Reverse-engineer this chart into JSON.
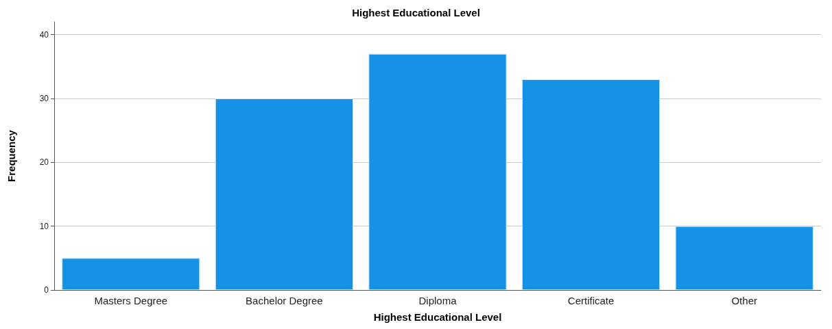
{
  "chart_data": {
    "type": "bar",
    "title": "Highest Educational Level",
    "xlabel": "Highest Educational Level",
    "ylabel": "Frequency",
    "categories": [
      "Masters Degree",
      "Bachelor Degree",
      "Diploma",
      "Certificate",
      "Other"
    ],
    "values": [
      5,
      30,
      37,
      33,
      10
    ],
    "color": "#1591e6",
    "ylim": [
      0,
      42
    ],
    "yticks": [
      0,
      10,
      20,
      30,
      40
    ],
    "grid": "y"
  }
}
